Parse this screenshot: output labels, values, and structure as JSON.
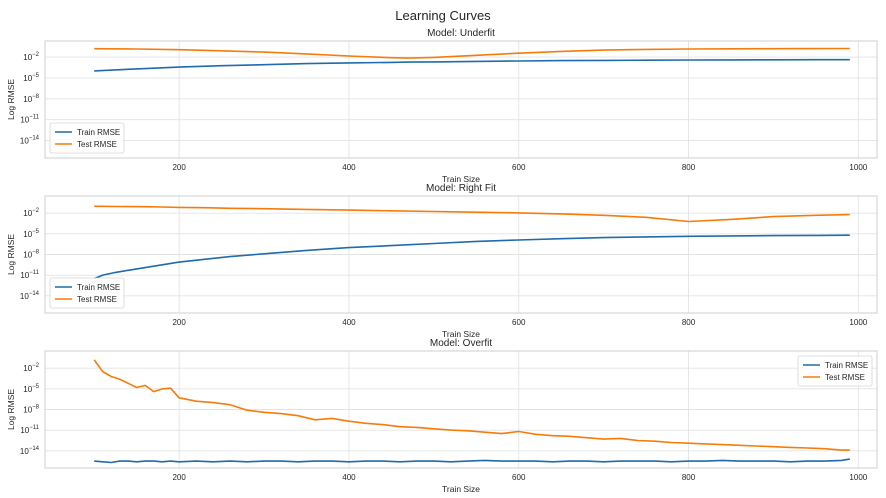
{
  "figure": {
    "suptitle": "Learning Curves"
  },
  "colors": {
    "train": "#1f6bab",
    "test": "#f57c0a"
  },
  "chart_data": [
    {
      "type": "line",
      "title": "Model: Underfit",
      "xlabel": "Train Size",
      "ylabel": "Log RMSE",
      "yscale": "log",
      "xlim": [
        42,
        1022
      ],
      "ylim_exp": [
        -16.5,
        0.3
      ],
      "xticks": [
        "200",
        "400",
        "600",
        "800",
        "1000"
      ],
      "yticks": [
        "10^-2",
        "10^-5",
        "10^-8",
        "10^-11",
        "10^-14"
      ],
      "grid": true,
      "legend_position": "lower-left",
      "x": [
        100,
        150,
        200,
        250,
        300,
        350,
        400,
        450,
        470,
        500,
        550,
        600,
        650,
        700,
        750,
        800,
        850,
        900,
        950,
        990
      ],
      "series": [
        {
          "name": "Train RMSE",
          "log10_values": [
            -4.0,
            -3.7,
            -3.45,
            -3.25,
            -3.1,
            -2.95,
            -2.85,
            -2.77,
            -2.73,
            -2.7,
            -2.63,
            -2.57,
            -2.52,
            -2.48,
            -2.45,
            -2.43,
            -2.41,
            -2.4,
            -2.39,
            -2.38
          ]
        },
        {
          "name": "Test RMSE",
          "log10_values": [
            -0.8,
            -0.85,
            -0.95,
            -1.1,
            -1.3,
            -1.55,
            -1.85,
            -2.1,
            -2.15,
            -2.05,
            -1.75,
            -1.45,
            -1.2,
            -1.0,
            -0.9,
            -0.85,
            -0.82,
            -0.8,
            -0.79,
            -0.78
          ]
        }
      ]
    },
    {
      "type": "line",
      "title": "Model: Right Fit",
      "xlabel": "Train Size",
      "ylabel": "Log RMSE",
      "yscale": "log",
      "xlim": [
        42,
        1022
      ],
      "ylim_exp": [
        -16.5,
        0.5
      ],
      "xticks": [
        "200",
        "400",
        "600",
        "800",
        "1000"
      ],
      "yticks": [
        "10^-2",
        "10^-5",
        "10^-8",
        "10^-11",
        "10^-14"
      ],
      "grid": true,
      "legend_position": "lower-left",
      "x": [
        100,
        110,
        125,
        140,
        160,
        180,
        200,
        230,
        260,
        300,
        350,
        400,
        450,
        500,
        550,
        600,
        650,
        700,
        750,
        800,
        850,
        900,
        950,
        990
      ],
      "series": [
        {
          "name": "Train RMSE",
          "log10_values": [
            -11.5,
            -11.0,
            -10.6,
            -10.3,
            -9.9,
            -9.5,
            -9.1,
            -8.7,
            -8.3,
            -7.9,
            -7.4,
            -7.0,
            -6.7,
            -6.4,
            -6.1,
            -5.9,
            -5.7,
            -5.55,
            -5.45,
            -5.35,
            -5.3,
            -5.25,
            -5.22,
            -5.2
          ]
        },
        {
          "name": "Test RMSE",
          "log10_values": [
            -1.0,
            -1.0,
            -1.02,
            -1.04,
            -1.06,
            -1.1,
            -1.15,
            -1.2,
            -1.28,
            -1.35,
            -1.45,
            -1.55,
            -1.65,
            -1.75,
            -1.85,
            -1.95,
            -2.1,
            -2.3,
            -2.6,
            -3.2,
            -2.9,
            -2.5,
            -2.3,
            -2.2
          ]
        }
      ]
    },
    {
      "type": "line",
      "title": "Model: Overfit",
      "xlabel": "Train Size",
      "ylabel": "Log RMSE",
      "yscale": "log",
      "xlim": [
        42,
        1022
      ],
      "ylim_exp": [
        -16.5,
        0.5
      ],
      "xticks": [
        "200",
        "400",
        "600",
        "800",
        "1000"
      ],
      "yticks": [
        "10^-2",
        "10^-5",
        "10^-8",
        "10^-11",
        "10^-14"
      ],
      "grid": true,
      "legend_position": "upper-right",
      "x": [
        100,
        110,
        120,
        130,
        140,
        150,
        160,
        170,
        180,
        190,
        200,
        220,
        240,
        260,
        280,
        300,
        320,
        340,
        360,
        380,
        400,
        420,
        440,
        460,
        480,
        500,
        520,
        540,
        560,
        580,
        600,
        620,
        640,
        660,
        680,
        700,
        720,
        740,
        760,
        780,
        800,
        820,
        840,
        860,
        880,
        900,
        920,
        940,
        960,
        980,
        990
      ],
      "series": [
        {
          "name": "Train RMSE",
          "log10_values": [
            -15.5,
            -15.6,
            -15.7,
            -15.5,
            -15.5,
            -15.6,
            -15.5,
            -15.5,
            -15.6,
            -15.5,
            -15.6,
            -15.5,
            -15.6,
            -15.5,
            -15.6,
            -15.5,
            -15.5,
            -15.6,
            -15.5,
            -15.5,
            -15.6,
            -15.5,
            -15.5,
            -15.6,
            -15.5,
            -15.5,
            -15.6,
            -15.5,
            -15.4,
            -15.5,
            -15.5,
            -15.5,
            -15.6,
            -15.5,
            -15.5,
            -15.6,
            -15.5,
            -15.5,
            -15.5,
            -15.6,
            -15.5,
            -15.5,
            -15.4,
            -15.5,
            -15.5,
            -15.5,
            -15.6,
            -15.5,
            -15.5,
            -15.4,
            -15.2
          ]
        },
        {
          "name": "Test RMSE",
          "log10_values": [
            -0.8,
            -2.5,
            -3.2,
            -3.6,
            -4.2,
            -4.8,
            -4.5,
            -5.4,
            -5.0,
            -4.9,
            -6.3,
            -6.8,
            -7.0,
            -7.3,
            -8.1,
            -8.4,
            -8.6,
            -8.9,
            -9.5,
            -9.3,
            -9.7,
            -10.0,
            -10.2,
            -10.5,
            -10.6,
            -10.8,
            -11.0,
            -11.1,
            -11.3,
            -11.5,
            -11.2,
            -11.6,
            -11.8,
            -11.9,
            -12.1,
            -12.3,
            -12.2,
            -12.5,
            -12.6,
            -12.8,
            -12.9,
            -13.0,
            -13.1,
            -13.2,
            -13.3,
            -13.4,
            -13.5,
            -13.6,
            -13.7,
            -13.9,
            -13.9
          ]
        }
      ]
    }
  ]
}
